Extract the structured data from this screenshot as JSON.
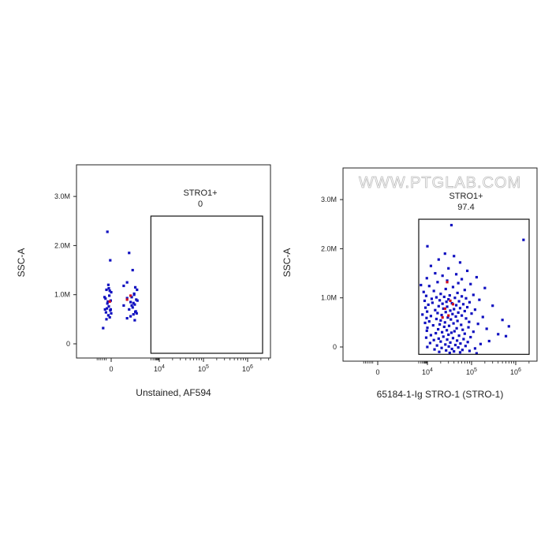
{
  "chart_data": [
    {
      "type": "scatter",
      "x_axis_label": "Unstained, AF594",
      "y_axis_label": "SSC-A",
      "y_scale": "linear",
      "x_scale": "biexponential",
      "y_ticks": [
        {
          "value": 3000000,
          "label": "3.0M"
        },
        {
          "value": 2000000,
          "label": "2.0M"
        },
        {
          "value": 1000000,
          "label": "1.0M"
        },
        {
          "value": 0,
          "label": "0"
        }
      ],
      "x_ticks": [
        {
          "value": 0,
          "label": "0"
        },
        {
          "value": 10000,
          "base": "10",
          "exp": "4"
        },
        {
          "value": 100000,
          "base": "10",
          "exp": "5"
        },
        {
          "value": 1000000,
          "base": "10",
          "exp": "6"
        }
      ],
      "gate": {
        "name": "STRO1+",
        "percent": "0",
        "x_range": [
          2000,
          4000000
        ],
        "y_range": [
          -200000,
          2600000
        ]
      },
      "series": [
        {
          "color": "#1010c0",
          "points": [
            [
              -80,
              2280000
            ],
            [
              30,
              1850000
            ],
            [
              -20,
              1700000
            ],
            [
              60,
              1500000
            ],
            [
              -60,
              1200000
            ],
            [
              20,
              1250000
            ],
            [
              100,
              1150000
            ],
            [
              -100,
              1100000
            ],
            [
              0,
              1050000
            ],
            [
              80,
              1020000
            ],
            [
              -40,
              980000
            ],
            [
              50,
              950000
            ],
            [
              -120,
              920000
            ],
            [
              120,
              900000
            ],
            [
              -10,
              880000
            ],
            [
              40,
              850000
            ],
            [
              -80,
              820000
            ],
            [
              90,
              800000
            ],
            [
              10,
              780000
            ],
            [
              -50,
              760000
            ],
            [
              60,
              740000
            ],
            [
              -90,
              720000
            ],
            [
              30,
              700000
            ],
            [
              -20,
              680000
            ],
            [
              110,
              660000
            ],
            [
              -110,
              640000
            ],
            [
              0,
              620000
            ],
            [
              70,
              600000
            ],
            [
              -60,
              580000
            ],
            [
              40,
              560000
            ],
            [
              -30,
              540000
            ],
            [
              20,
              520000
            ],
            [
              -100,
              500000
            ],
            [
              90,
              480000
            ],
            [
              -170,
              320000
            ],
            [
              140,
              1100000
            ],
            [
              -140,
              950000
            ],
            [
              150,
              880000
            ],
            [
              -130,
              700000
            ],
            [
              130,
              620000
            ],
            [
              10,
              1180000
            ],
            [
              -30,
              1080000
            ],
            [
              80,
              1000000
            ],
            [
              -70,
              860000
            ],
            [
              50,
              780000
            ],
            [
              -10,
              700000
            ],
            [
              100,
              650000
            ],
            [
              -50,
              1130000
            ],
            [
              20,
              930000
            ],
            [
              70,
              830000
            ]
          ]
        },
        {
          "color": "#d01020",
          "points": [
            [
              20,
              900000
            ],
            [
              -30,
              860000
            ],
            [
              40,
              980000
            ]
          ]
        }
      ]
    },
    {
      "type": "scatter",
      "x_axis_label": "65184-1-Ig STRO-1 (STRO-1)",
      "y_axis_label": "SSC-A",
      "y_scale": "linear",
      "x_scale": "biexponential",
      "watermark": "WWW.PTGLAB.COM",
      "y_ticks": [
        {
          "value": 3000000,
          "label": "3.0M"
        },
        {
          "value": 2000000,
          "label": "2.0M"
        },
        {
          "value": 1000000,
          "label": "1.0M"
        },
        {
          "value": 0,
          "label": "0"
        }
      ],
      "x_ticks": [
        {
          "value": 0,
          "label": "0"
        },
        {
          "value": 10000,
          "base": "10",
          "exp": "4"
        },
        {
          "value": 100000,
          "base": "10",
          "exp": "5"
        },
        {
          "value": 1000000,
          "base": "10",
          "exp": "6"
        }
      ],
      "gate": {
        "name": "STRO1+",
        "percent": "97.4",
        "x_range": [
          2000,
          4000000
        ],
        "y_range": [
          -150000,
          2600000
        ]
      },
      "series": [
        {
          "color": "#1010c0",
          "points": [
            [
              35000,
              2480000
            ],
            [
              1500000,
              2180000
            ],
            [
              10000,
              2050000
            ],
            [
              25000,
              1900000
            ],
            [
              40000,
              1850000
            ],
            [
              18000,
              1780000
            ],
            [
              55000,
              1720000
            ],
            [
              12000,
              1650000
            ],
            [
              30000,
              1600000
            ],
            [
              80000,
              1550000
            ],
            [
              15000,
              1500000
            ],
            [
              45000,
              1480000
            ],
            [
              22000,
              1450000
            ],
            [
              130000,
              1420000
            ],
            [
              9000,
              1400000
            ],
            [
              60000,
              1380000
            ],
            [
              28000,
              1350000
            ],
            [
              17000,
              1320000
            ],
            [
              50000,
              1300000
            ],
            [
              95000,
              1280000
            ],
            [
              3000,
              1260000
            ],
            [
              11000,
              1240000
            ],
            [
              38000,
              1220000
            ],
            [
              200000,
              1200000
            ],
            [
              26000,
              1180000
            ],
            [
              70000,
              1160000
            ],
            [
              14000,
              1140000
            ],
            [
              5000,
              1120000
            ],
            [
              48000,
              1100000
            ],
            [
              20000,
              1080000
            ],
            [
              110000,
              1060000
            ],
            [
              32000,
              1050000
            ],
            [
              8000,
              1040000
            ],
            [
              60000,
              1030000
            ],
            [
              24000,
              1020000
            ],
            [
              16000,
              1010000
            ],
            [
              42000,
              1000000
            ],
            [
              75000,
              990000
            ],
            [
              12500,
              980000
            ],
            [
              30000,
              970000
            ],
            [
              150000,
              960000
            ],
            [
              19000,
              950000
            ],
            [
              6000,
              940000
            ],
            [
              52000,
              930000
            ],
            [
              27000,
              920000
            ],
            [
              90000,
              910000
            ],
            [
              13000,
              900000
            ],
            [
              36000,
              890000
            ],
            [
              22000,
              880000
            ],
            [
              65000,
              870000
            ],
            [
              10500,
              860000
            ],
            [
              45000,
              850000
            ],
            [
              300000,
              840000
            ],
            [
              18000,
              830000
            ],
            [
              28000,
              820000
            ],
            [
              80000,
              810000
            ],
            [
              7000,
              800000
            ],
            [
              55000,
              790000
            ],
            [
              23000,
              780000
            ],
            [
              40000,
              770000
            ],
            [
              120000,
              760000
            ],
            [
              15000,
              750000
            ],
            [
              33000,
              740000
            ],
            [
              70000,
              730000
            ],
            [
              9500,
              720000
            ],
            [
              26000,
              710000
            ],
            [
              50000,
              700000
            ],
            [
              17000,
              690000
            ],
            [
              100000,
              680000
            ],
            [
              37000,
              670000
            ],
            [
              4000,
              660000
            ],
            [
              21000,
              650000
            ],
            [
              60000,
              640000
            ],
            [
              12000,
              630000
            ],
            [
              44000,
              620000
            ],
            [
              180000,
              610000
            ],
            [
              29000,
              600000
            ],
            [
              8500,
              590000
            ],
            [
              75000,
              580000
            ],
            [
              16000,
              570000
            ],
            [
              34000,
              560000
            ],
            [
              500000,
              550000
            ],
            [
              20000,
              540000
            ],
            [
              48000,
              530000
            ],
            [
              11000,
              520000
            ],
            [
              88000,
              510000
            ],
            [
              25000,
              500000
            ],
            [
              6500,
              490000
            ],
            [
              39000,
              480000
            ],
            [
              140000,
              470000
            ],
            [
              19000,
              460000
            ],
            [
              58000,
              450000
            ],
            [
              13500,
              440000
            ],
            [
              31000,
              430000
            ],
            [
              700000,
              420000
            ],
            [
              24000,
              410000
            ],
            [
              85000,
              400000
            ],
            [
              10000,
              390000
            ],
            [
              46000,
              380000
            ],
            [
              220000,
              370000
            ],
            [
              17500,
              360000
            ],
            [
              63000,
              350000
            ],
            [
              27500,
              340000
            ],
            [
              9000,
              330000
            ],
            [
              41000,
              320000
            ],
            [
              110000,
              310000
            ],
            [
              21500,
              300000
            ],
            [
              35000,
              290000
            ],
            [
              15500,
              280000
            ],
            [
              70000,
              270000
            ],
            [
              400000,
              260000
            ],
            [
              30000,
              250000
            ],
            [
              12000,
              240000
            ],
            [
              52000,
              230000
            ],
            [
              600000,
              220000
            ],
            [
              23000,
              210000
            ],
            [
              95000,
              200000
            ],
            [
              8000,
              190000
            ],
            [
              38000,
              180000
            ],
            [
              18000,
              170000
            ],
            [
              66000,
              160000
            ],
            [
              28000,
              150000
            ],
            [
              14000,
              140000
            ],
            [
              47000,
              130000
            ],
            [
              250000,
              120000
            ],
            [
              20000,
              110000
            ],
            [
              82000,
              100000
            ],
            [
              33000,
              90000
            ],
            [
              11500,
              80000
            ],
            [
              56000,
              70000
            ],
            [
              160000,
              60000
            ],
            [
              25500,
              50000
            ],
            [
              43000,
              40000
            ],
            [
              16500,
              30000
            ],
            [
              73000,
              20000
            ],
            [
              30500,
              10000
            ],
            [
              9800,
              0
            ],
            [
              50000,
              -10000
            ],
            [
              21000,
              -20000
            ],
            [
              120000,
              -30000
            ],
            [
              36000,
              -40000
            ],
            [
              14500,
              -50000
            ],
            [
              62000,
              -60000
            ],
            [
              26500,
              -70000
            ],
            [
              90000,
              -80000
            ],
            [
              40000,
              -90000
            ],
            [
              18500,
              -100000
            ],
            [
              55000,
              -110000
            ],
            [
              32000,
              -120000
            ],
            [
              130000,
              -130000
            ]
          ]
        },
        {
          "color": "#d01020",
          "points": [
            [
              28000,
              1320000
            ],
            [
              33000,
              940000
            ],
            [
              22000,
              600000
            ],
            [
              30000,
              640000
            ],
            [
              25000,
              780000
            ],
            [
              38000,
              870000
            ]
          ]
        }
      ]
    }
  ]
}
